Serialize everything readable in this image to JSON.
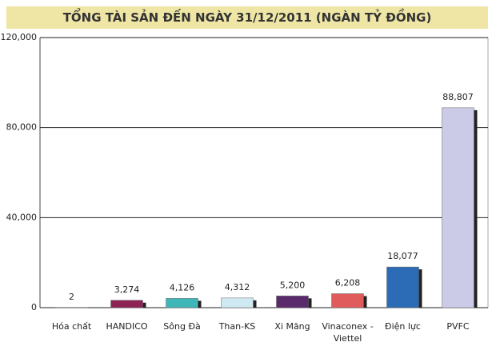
{
  "chart_data": {
    "type": "bar",
    "title": "TỔNG TÀI SẢN ĐẾN NGÀY 31/12/2011 (NGÀN TỶ ĐỒNG)",
    "categories": [
      "Hóa chất",
      "HANDICO",
      "Sông Đà",
      "Than-KS",
      "Xi Măng",
      "Vinaconex - Viettel",
      "Điện lực",
      "PVFC"
    ],
    "values": [
      2,
      3274,
      4126,
      4312,
      5200,
      6208,
      18077,
      88807
    ],
    "value_labels": [
      "2",
      "3,274",
      "4,126",
      "4,312",
      "5,200",
      "6,208",
      "18,077",
      "88,807"
    ],
    "colors": [
      "#9a9a9a",
      "#8e2456",
      "#3fb6b8",
      "#cfe9f2",
      "#5b2a6c",
      "#e05c5c",
      "#2c6bb6",
      "#cbcbe8"
    ],
    "ylim": [
      0,
      120000
    ],
    "yticks": [
      0,
      {
        "value": 40000,
        "label": "40,000"
      },
      {
        "value": 80000,
        "label": "80,000"
      },
      {
        "value": 120000,
        "label": "120,000"
      }
    ],
    "grid": true
  }
}
